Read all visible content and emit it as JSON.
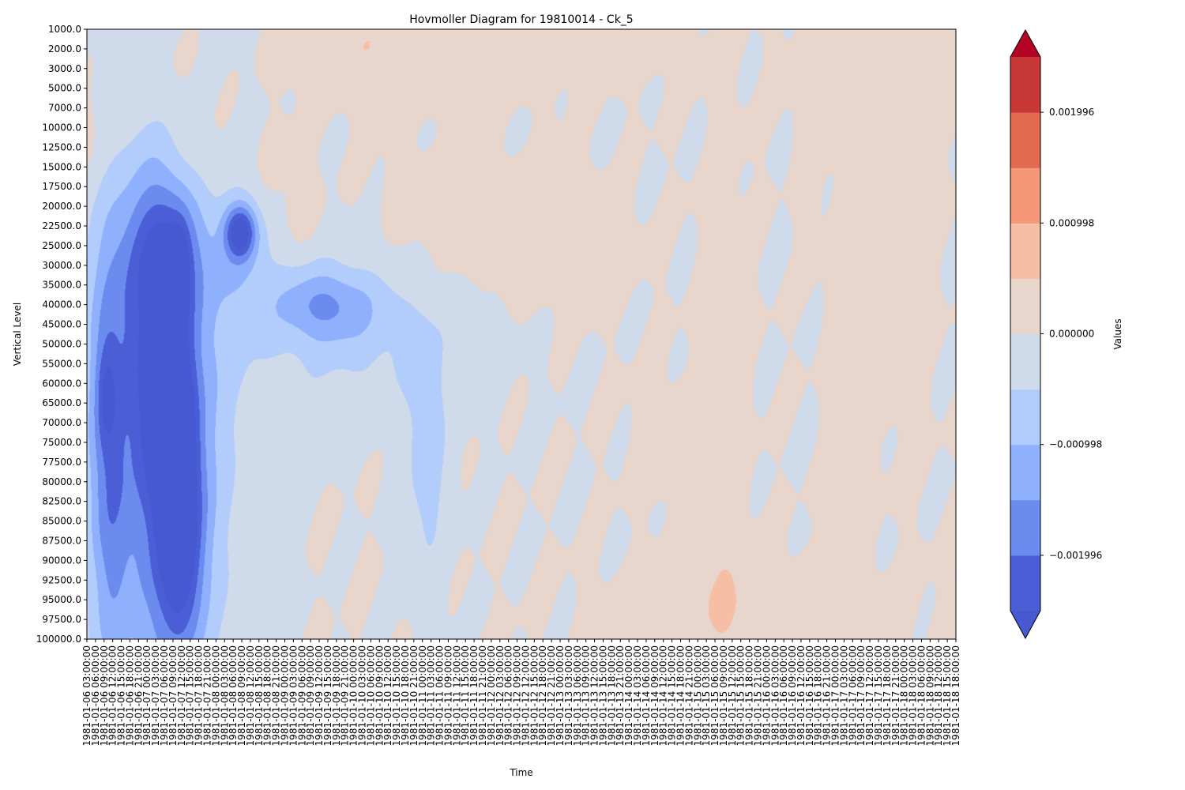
{
  "chart_data": {
    "type": "heatmap",
    "subtype": "filled-contour",
    "title": "Hovmoller Diagram for 19810014 - Ck_5",
    "xlabel": "Time",
    "ylabel": "Vertical Level",
    "colorbar_label": "Values",
    "colormap": "coolwarm",
    "colorbar_extend": "both",
    "colorbar_ticks": [
      "0.001996",
      "0.000998",
      "0.000000",
      "−0.000998",
      "−0.001996"
    ],
    "colorbar_tick_values": [
      0.001996,
      0.000998,
      0.0,
      -0.000998,
      -0.001996
    ],
    "levels": [
      -0.002495,
      -0.001996,
      -0.001497,
      -0.000998,
      -0.000499,
      0.0,
      0.000499,
      0.000998,
      0.001497,
      0.001996,
      0.002495
    ],
    "colors": {
      "under": "#4659d1",
      "bands": [
        "#4b5ed6",
        "#6b8bef",
        "#8eb0fd",
        "#b2ccfb",
        "#cfdaea",
        "#e8d6cc",
        "#f6bea4",
        "#f39778",
        "#e26a50",
        "#c73735"
      ],
      "over": "#b40426"
    },
    "y_levels": [
      "1000.0",
      "2000.0",
      "3000.0",
      "5000.0",
      "7000.0",
      "10000.0",
      "12500.0",
      "15000.0",
      "17500.0",
      "20000.0",
      "22500.0",
      "25000.0",
      "30000.0",
      "35000.0",
      "40000.0",
      "45000.0",
      "50000.0",
      "55000.0",
      "60000.0",
      "65000.0",
      "70000.0",
      "75000.0",
      "77500.0",
      "80000.0",
      "82500.0",
      "85000.0",
      "87500.0",
      "90000.0",
      "92500.0",
      "95000.0",
      "97500.0",
      "100000.0"
    ],
    "x_times": [
      "1981-01-06 03:00:00",
      "1981-01-06 06:00:00",
      "1981-01-06 09:00:00",
      "1981-01-06 12:00:00",
      "1981-01-06 15:00:00",
      "1981-01-06 18:00:00",
      "1981-01-06 21:00:00",
      "1981-01-07 00:00:00",
      "1981-01-07 03:00:00",
      "1981-01-07 06:00:00",
      "1981-01-07 09:00:00",
      "1981-01-07 12:00:00",
      "1981-01-07 15:00:00",
      "1981-01-07 18:00:00",
      "1981-01-07 21:00:00",
      "1981-01-08 00:00:00",
      "1981-01-08 03:00:00",
      "1981-01-08 06:00:00",
      "1981-01-08 09:00:00",
      "1981-01-08 12:00:00",
      "1981-01-08 15:00:00",
      "1981-01-08 18:00:00",
      "1981-01-08 21:00:00",
      "1981-01-09 00:00:00",
      "1981-01-09 03:00:00",
      "1981-01-09 06:00:00",
      "1981-01-09 09:00:00",
      "1981-01-09 12:00:00",
      "1981-01-09 15:00:00",
      "1981-01-09 18:00:00",
      "1981-01-09 21:00:00",
      "1981-01-10 00:00:00",
      "1981-01-10 03:00:00",
      "1981-01-10 06:00:00",
      "1981-01-10 09:00:00",
      "1981-01-10 12:00:00",
      "1981-01-10 15:00:00",
      "1981-01-10 18:00:00",
      "1981-01-10 21:00:00",
      "1981-01-11 00:00:00",
      "1981-01-11 03:00:00",
      "1981-01-11 06:00:00",
      "1981-01-11 09:00:00",
      "1981-01-11 12:00:00",
      "1981-01-11 15:00:00",
      "1981-01-11 18:00:00",
      "1981-01-11 21:00:00",
      "1981-01-12 00:00:00",
      "1981-01-12 03:00:00",
      "1981-01-12 06:00:00",
      "1981-01-12 09:00:00",
      "1981-01-12 12:00:00",
      "1981-01-12 15:00:00",
      "1981-01-12 18:00:00",
      "1981-01-12 21:00:00",
      "1981-01-13 00:00:00",
      "1981-01-13 03:00:00",
      "1981-01-13 06:00:00",
      "1981-01-13 09:00:00",
      "1981-01-13 12:00:00",
      "1981-01-13 15:00:00",
      "1981-01-13 18:00:00",
      "1981-01-13 21:00:00",
      "1981-01-14 00:00:00",
      "1981-01-14 03:00:00",
      "1981-01-14 06:00:00",
      "1981-01-14 09:00:00",
      "1981-01-14 12:00:00",
      "1981-01-14 15:00:00",
      "1981-01-14 18:00:00",
      "1981-01-14 21:00:00",
      "1981-01-15 00:00:00",
      "1981-01-15 03:00:00",
      "1981-01-15 06:00:00",
      "1981-01-15 09:00:00",
      "1981-01-15 12:00:00",
      "1981-01-15 15:00:00",
      "1981-01-15 18:00:00",
      "1981-01-15 21:00:00",
      "1981-01-16 00:00:00",
      "1981-01-16 03:00:00",
      "1981-01-16 06:00:00",
      "1981-01-16 09:00:00",
      "1981-01-16 12:00:00",
      "1981-01-16 15:00:00",
      "1981-01-16 18:00:00",
      "1981-01-16 21:00:00",
      "1981-01-17 00:00:00",
      "1981-01-17 03:00:00",
      "1981-01-17 06:00:00",
      "1981-01-17 09:00:00",
      "1981-01-17 12:00:00",
      "1981-01-17 15:00:00",
      "1981-01-17 18:00:00",
      "1981-01-17 21:00:00",
      "1981-01-18 00:00:00",
      "1981-01-18 03:00:00",
      "1981-01-18 06:00:00",
      "1981-01-18 09:00:00",
      "1981-01-18 12:00:00",
      "1981-01-18 15:00:00",
      "1981-01-18 18:00:00"
    ],
    "features": [
      {
        "t": 2.4,
        "lvl": 22.0,
        "st": 1.5,
        "sl": 7.0,
        "v": -0.0012
      },
      {
        "t": 2.2,
        "lvl": 18.5,
        "st": 0.8,
        "sl": 1.8,
        "v": -0.0008
      },
      {
        "t": 9.5,
        "lvl": 19.5,
        "st": 1.9,
        "sl": 3.0,
        "v": -0.0026
      },
      {
        "t": 10.8,
        "lvl": 25.5,
        "st": 1.6,
        "sl": 3.5,
        "v": -0.0024
      },
      {
        "t": 9.0,
        "lvl": 23.5,
        "st": 3.5,
        "sl": 7.5,
        "v": -0.001
      },
      {
        "t": 7.5,
        "lvl": 12.5,
        "st": 3.0,
        "sl": 4.0,
        "v": -0.001
      },
      {
        "t": 10.0,
        "lvl": 11.5,
        "st": 2.5,
        "sl": 2.5,
        "v": -0.0011
      },
      {
        "t": 10.8,
        "lvl": 12.2,
        "st": 0.7,
        "sl": 1.4,
        "v": -0.0012
      },
      {
        "t": 17.8,
        "lvl": 10.3,
        "st": 1.2,
        "sl": 0.9,
        "v": -0.0022
      },
      {
        "t": 18.0,
        "lvl": 10.5,
        "st": 2.5,
        "sl": 2.5,
        "v": -0.0008
      },
      {
        "t": 5.0,
        "lvl": 17.0,
        "st": 4.5,
        "sl": 13.0,
        "v": -0.0008
      },
      {
        "t": 12.0,
        "lvl": 20.5,
        "st": 5.0,
        "sl": 12.0,
        "v": -0.0007
      },
      {
        "t": 27.5,
        "lvl": 14.0,
        "st": 4.0,
        "sl": 1.3,
        "v": -0.00115
      },
      {
        "t": 31.0,
        "lvl": 15.5,
        "st": 9.0,
        "sl": 2.8,
        "v": -0.0006
      },
      {
        "t": 39.5,
        "lvl": 22.0,
        "st": 1.8,
        "sl": 4.2,
        "v": -0.00075
      },
      {
        "t": 1.5,
        "lvl": 6.0,
        "st": 4.5,
        "sl": 2.5,
        "v": 0.00035
      },
      {
        "t": 8.0,
        "lvl": 2.0,
        "st": 5.0,
        "sl": 2.5,
        "v": 0.0004
      },
      {
        "t": 13.0,
        "lvl": 7.0,
        "st": 3.0,
        "sl": 2.5,
        "v": 0.00035
      },
      {
        "t": 20.0,
        "lvl": 8.0,
        "st": 3.0,
        "sl": 2.0,
        "v": 0.0003
      },
      {
        "t": 27.0,
        "lvl": 0.5,
        "st": 4.0,
        "sl": 1.5,
        "v": 0.0003
      },
      {
        "t": 36.0,
        "lvl": 1.0,
        "st": 6.0,
        "sl": 2.0,
        "v": 0.0003
      },
      {
        "t": 45.0,
        "lvl": 10.0,
        "st": 6.0,
        "sl": 2.0,
        "v": 0.0003
      },
      {
        "t": 55.0,
        "lvl": 11.0,
        "st": 5.0,
        "sl": 2.0,
        "v": 0.0003
      },
      {
        "t": 47.0,
        "lvl": 1.0,
        "st": 8.0,
        "sl": 1.5,
        "v": 0.0003
      },
      {
        "t": 64.0,
        "lvl": 0.5,
        "st": 4.0,
        "sl": 1.2,
        "v": 0.00025
      },
      {
        "t": 74.0,
        "lvl": 24.0,
        "st": 1.8,
        "sl": 12.0,
        "v": 0.0003
      },
      {
        "t": 87.0,
        "lvl": 23.0,
        "st": 0.9,
        "sl": 9.0,
        "v": 0.00025
      },
      {
        "t": 78.0,
        "lvl": 29.5,
        "st": 10.0,
        "sl": 1.6,
        "v": 0.00035
      },
      {
        "t": 92.0,
        "lvl": 2.0,
        "st": 6.0,
        "sl": 2.0,
        "v": 0.00025
      },
      {
        "t": 95.0,
        "lvl": 10.0,
        "st": 2.0,
        "sl": 7.0,
        "v": 0.00025
      },
      {
        "t": 90.0,
        "lvl": 16.0,
        "st": 1.0,
        "sl": 6.0,
        "v": 0.00025
      },
      {
        "t": 68.0,
        "lvl": 21.0,
        "st": 3.0,
        "sl": 2.0,
        "v": 0.00025
      },
      {
        "t": 25.0,
        "lvl": 9.5,
        "st": 1.2,
        "sl": 1.0,
        "v": 0.00025
      },
      {
        "t": 38.0,
        "lvl": 8.5,
        "st": 2.0,
        "sl": 1.2,
        "v": 0.00025
      },
      {
        "t": 84.0,
        "lvl": 5.0,
        "st": 1.0,
        "sl": 4.0,
        "v": 0.00025
      }
    ]
  }
}
